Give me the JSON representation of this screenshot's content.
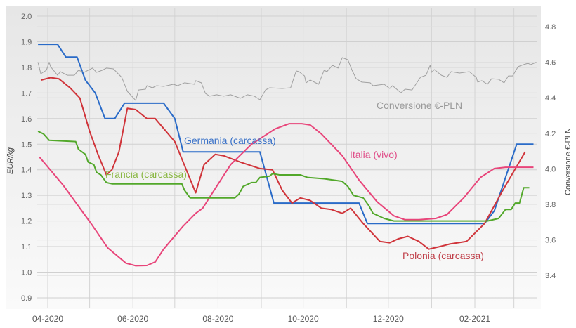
{
  "chart_data": {
    "type": "line",
    "title": "",
    "xlabel": "",
    "ylabel": "EUR/kg",
    "y2label": "Conversione €-PLN",
    "ylim": [
      0.85,
      2.03
    ],
    "y2lim": [
      3.23,
      4.85
    ],
    "yticks": [
      "0.9",
      "1.0",
      "1.1",
      "1.2",
      "1.3",
      "1.4",
      "1.5",
      "1.6",
      "1.7",
      "1.8",
      "1.9",
      "2.0"
    ],
    "y2ticks": [
      "3.4",
      "3.6",
      "3.8",
      "4.0",
      "4.2",
      "4.4",
      "4.6",
      "4.8"
    ],
    "xticks": [
      {
        "date": "2020-04-01",
        "label": "04-2020"
      },
      {
        "date": "2020-06-01",
        "label": "06-2020"
      },
      {
        "date": "2020-08-01",
        "label": "08-2020"
      },
      {
        "date": "2020-10-01",
        "label": "10-2020"
      },
      {
        "date": "2020-12-01",
        "label": "12-2020"
      },
      {
        "date": "2021-02-01",
        "label": "02-2021"
      }
    ],
    "grid": true,
    "series": [
      {
        "name": "Germania (carcassa)",
        "axis": "left",
        "color": "#2a6bc8",
        "points": [
          [
            "2020-03-25",
            1.89
          ],
          [
            "2020-04-08",
            1.89
          ],
          [
            "2020-04-14",
            1.84
          ],
          [
            "2020-04-22",
            1.84
          ],
          [
            "2020-04-28",
            1.75
          ],
          [
            "2020-05-05",
            1.7
          ],
          [
            "2020-05-12",
            1.6
          ],
          [
            "2020-05-19",
            1.6
          ],
          [
            "2020-05-26",
            1.66
          ],
          [
            "2020-06-23",
            1.66
          ],
          [
            "2020-07-01",
            1.6
          ],
          [
            "2020-07-07",
            1.47
          ],
          [
            "2020-08-31",
            1.47
          ],
          [
            "2020-09-10",
            1.27
          ],
          [
            "2020-11-10",
            1.27
          ],
          [
            "2020-11-16",
            1.19
          ],
          [
            "2021-02-08",
            1.19
          ],
          [
            "2021-02-15",
            1.24
          ],
          [
            "2021-03-03",
            1.5
          ],
          [
            "2021-03-15",
            1.5
          ]
        ]
      },
      {
        "name": "Polonia (carcassa)",
        "axis": "left",
        "color": "#d0343a",
        "points": [
          [
            "2020-03-27",
            1.75
          ],
          [
            "2020-04-03",
            1.76
          ],
          [
            "2020-04-09",
            1.755
          ],
          [
            "2020-04-17",
            1.72
          ],
          [
            "2020-04-24",
            1.68
          ],
          [
            "2020-05-01",
            1.55
          ],
          [
            "2020-05-07",
            1.46
          ],
          [
            "2020-05-13",
            1.38
          ],
          [
            "2020-05-17",
            1.4
          ],
          [
            "2020-05-22",
            1.47
          ],
          [
            "2020-05-28",
            1.64
          ],
          [
            "2020-06-03",
            1.635
          ],
          [
            "2020-06-11",
            1.6
          ],
          [
            "2020-06-17",
            1.6
          ],
          [
            "2020-07-01",
            1.51
          ],
          [
            "2020-07-04",
            1.47
          ],
          [
            "2020-07-16",
            1.31
          ],
          [
            "2020-07-22",
            1.42
          ],
          [
            "2020-07-30",
            1.46
          ],
          [
            "2020-08-05",
            1.455
          ],
          [
            "2020-08-17",
            1.43
          ],
          [
            "2020-08-31",
            1.405
          ],
          [
            "2020-09-09",
            1.4
          ],
          [
            "2020-09-16",
            1.32
          ],
          [
            "2020-09-23",
            1.27
          ],
          [
            "2020-09-29",
            1.29
          ],
          [
            "2020-10-06",
            1.28
          ],
          [
            "2020-10-14",
            1.25
          ],
          [
            "2020-10-21",
            1.245
          ],
          [
            "2020-10-29",
            1.23
          ],
          [
            "2020-11-04",
            1.25
          ],
          [
            "2020-11-13",
            1.19
          ],
          [
            "2020-11-25",
            1.12
          ],
          [
            "2020-12-02",
            1.115
          ],
          [
            "2020-12-08",
            1.13
          ],
          [
            "2020-12-15",
            1.14
          ],
          [
            "2020-12-23",
            1.12
          ],
          [
            "2020-12-30",
            1.09
          ],
          [
            "2021-01-07",
            1.1
          ],
          [
            "2021-01-14",
            1.11
          ],
          [
            "2021-01-26",
            1.12
          ],
          [
            "2021-02-08",
            1.19
          ],
          [
            "2021-02-21",
            1.32
          ],
          [
            "2021-03-09",
            1.47
          ]
        ]
      },
      {
        "name": "Italia (vivo)",
        "axis": "left",
        "color": "#e8457a",
        "points": [
          [
            "2020-03-26",
            1.45
          ],
          [
            "2020-04-12",
            1.34
          ],
          [
            "2020-05-02",
            1.19
          ],
          [
            "2020-05-14",
            1.095
          ],
          [
            "2020-05-27",
            1.035
          ],
          [
            "2020-06-03",
            1.025
          ],
          [
            "2020-06-11",
            1.026
          ],
          [
            "2020-06-17",
            1.04
          ],
          [
            "2020-06-23",
            1.09
          ],
          [
            "2020-07-07",
            1.18
          ],
          [
            "2020-07-16",
            1.23
          ],
          [
            "2020-07-21",
            1.25
          ],
          [
            "2020-07-28",
            1.31
          ],
          [
            "2020-08-10",
            1.42
          ],
          [
            "2020-08-25",
            1.5
          ],
          [
            "2020-09-11",
            1.56
          ],
          [
            "2020-09-21",
            1.58
          ],
          [
            "2020-09-30",
            1.58
          ],
          [
            "2020-10-06",
            1.575
          ],
          [
            "2020-10-14",
            1.54
          ],
          [
            "2020-10-29",
            1.455
          ],
          [
            "2020-11-10",
            1.36
          ],
          [
            "2020-11-23",
            1.275
          ],
          [
            "2020-12-05",
            1.22
          ],
          [
            "2020-12-13",
            1.205
          ],
          [
            "2020-12-23",
            1.205
          ],
          [
            "2021-01-04",
            1.21
          ],
          [
            "2021-01-12",
            1.225
          ],
          [
            "2021-01-24",
            1.29
          ],
          [
            "2021-02-05",
            1.37
          ],
          [
            "2021-02-15",
            1.405
          ],
          [
            "2021-02-23",
            1.41
          ],
          [
            "2021-03-05",
            1.41
          ],
          [
            "2021-03-15",
            1.41
          ]
        ]
      },
      {
        "name": "Francia (carcassa)",
        "axis": "left",
        "color": "#52a82a",
        "points": [
          [
            "2020-03-25",
            1.55
          ],
          [
            "2020-03-29",
            1.54
          ],
          [
            "2020-04-02",
            1.515
          ],
          [
            "2020-04-21",
            1.51
          ],
          [
            "2020-04-23",
            1.48
          ],
          [
            "2020-04-28",
            1.46
          ],
          [
            "2020-04-30",
            1.43
          ],
          [
            "2020-05-04",
            1.42
          ],
          [
            "2020-05-06",
            1.39
          ],
          [
            "2020-05-09",
            1.38
          ],
          [
            "2020-05-13",
            1.35
          ],
          [
            "2020-05-17",
            1.345
          ],
          [
            "2020-07-06",
            1.345
          ],
          [
            "2020-07-08",
            1.32
          ],
          [
            "2020-07-12",
            1.29
          ],
          [
            "2020-08-13",
            1.29
          ],
          [
            "2020-08-16",
            1.305
          ],
          [
            "2020-08-19",
            1.335
          ],
          [
            "2020-08-25",
            1.35
          ],
          [
            "2020-08-28",
            1.35
          ],
          [
            "2020-08-31",
            1.37
          ],
          [
            "2020-09-07",
            1.375
          ],
          [
            "2020-09-09",
            1.385
          ],
          [
            "2020-09-14",
            1.38
          ],
          [
            "2020-09-29",
            1.38
          ],
          [
            "2020-10-04",
            1.37
          ],
          [
            "2020-10-16",
            1.365
          ],
          [
            "2020-10-29",
            1.355
          ],
          [
            "2020-11-02",
            1.335
          ],
          [
            "2020-11-06",
            1.3
          ],
          [
            "2020-11-13",
            1.29
          ],
          [
            "2020-11-17",
            1.26
          ],
          [
            "2020-11-20",
            1.23
          ],
          [
            "2020-11-28",
            1.21
          ],
          [
            "2020-12-05",
            1.2
          ],
          [
            "2021-02-10",
            1.2
          ],
          [
            "2021-02-18",
            1.21
          ],
          [
            "2021-02-23",
            1.245
          ],
          [
            "2021-02-27",
            1.245
          ],
          [
            "2021-03-02",
            1.27
          ],
          [
            "2021-03-05",
            1.27
          ],
          [
            "2021-03-08",
            1.33
          ],
          [
            "2021-03-12",
            1.33
          ]
        ]
      },
      {
        "name": "Conversione €-PLN",
        "axis": "right",
        "color": "#a0a0a0",
        "points": [
          [
            "2020-03-25",
            4.6
          ],
          [
            "2020-03-27",
            4.535
          ],
          [
            "2020-03-31",
            4.555
          ],
          [
            "2020-04-02",
            4.6
          ],
          [
            "2020-04-03",
            4.575
          ],
          [
            "2020-04-08",
            4.527
          ],
          [
            "2020-04-10",
            4.547
          ],
          [
            "2020-04-15",
            4.527
          ],
          [
            "2020-04-20",
            4.527
          ],
          [
            "2020-04-23",
            4.555
          ],
          [
            "2020-04-27",
            4.543
          ],
          [
            "2020-05-03",
            4.567
          ],
          [
            "2020-05-06",
            4.543
          ],
          [
            "2020-05-10",
            4.555
          ],
          [
            "2020-05-13",
            4.567
          ],
          [
            "2020-05-18",
            4.563
          ],
          [
            "2020-05-23",
            4.523
          ],
          [
            "2020-05-24",
            4.515
          ],
          [
            "2020-05-28",
            4.436
          ],
          [
            "2020-06-03",
            4.385
          ],
          [
            "2020-06-05",
            4.444
          ],
          [
            "2020-06-10",
            4.448
          ],
          [
            "2020-06-11",
            4.468
          ],
          [
            "2020-06-15",
            4.456
          ],
          [
            "2020-06-18",
            4.468
          ],
          [
            "2020-06-23",
            4.464
          ],
          [
            "2020-06-30",
            4.476
          ],
          [
            "2020-07-03",
            4.468
          ],
          [
            "2020-07-08",
            4.484
          ],
          [
            "2020-07-15",
            4.476
          ],
          [
            "2020-07-16",
            4.496
          ],
          [
            "2020-07-20",
            4.484
          ],
          [
            "2020-07-23",
            4.424
          ],
          [
            "2020-07-26",
            4.409
          ],
          [
            "2020-07-31",
            4.417
          ],
          [
            "2020-08-05",
            4.409
          ],
          [
            "2020-08-10",
            4.417
          ],
          [
            "2020-08-17",
            4.397
          ],
          [
            "2020-08-22",
            4.417
          ],
          [
            "2020-08-27",
            4.409
          ],
          [
            "2020-08-31",
            4.389
          ],
          [
            "2020-09-04",
            4.444
          ],
          [
            "2020-09-07",
            4.456
          ],
          [
            "2020-09-16",
            4.452
          ],
          [
            "2020-09-22",
            4.456
          ],
          [
            "2020-09-26",
            4.551
          ],
          [
            "2020-09-28",
            4.547
          ],
          [
            "2020-10-02",
            4.523
          ],
          [
            "2020-10-03",
            4.484
          ],
          [
            "2020-10-06",
            4.5
          ],
          [
            "2020-10-12",
            4.476
          ],
          [
            "2020-10-16",
            4.555
          ],
          [
            "2020-10-18",
            4.547
          ],
          [
            "2020-10-22",
            4.583
          ],
          [
            "2020-10-26",
            4.567
          ],
          [
            "2020-10-29",
            4.626
          ],
          [
            "2020-11-02",
            4.614
          ],
          [
            "2020-11-05",
            4.555
          ],
          [
            "2020-11-08",
            4.507
          ],
          [
            "2020-11-12",
            4.488
          ],
          [
            "2020-11-18",
            4.484
          ],
          [
            "2020-11-20",
            4.468
          ],
          [
            "2020-11-28",
            4.476
          ],
          [
            "2020-12-02",
            4.452
          ],
          [
            "2020-12-04",
            4.468
          ],
          [
            "2020-12-10",
            4.428
          ],
          [
            "2020-12-13",
            4.448
          ],
          [
            "2020-12-18",
            4.444
          ],
          [
            "2020-12-24",
            4.515
          ],
          [
            "2020-12-28",
            4.527
          ],
          [
            "2020-12-31",
            4.583
          ],
          [
            "2021-01-01",
            4.543
          ],
          [
            "2021-01-03",
            4.559
          ],
          [
            "2021-01-08",
            4.527
          ],
          [
            "2021-01-12",
            4.515
          ],
          [
            "2021-01-15",
            4.547
          ],
          [
            "2021-01-21",
            4.539
          ],
          [
            "2021-01-28",
            4.547
          ],
          [
            "2021-02-02",
            4.515
          ],
          [
            "2021-02-03",
            4.488
          ],
          [
            "2021-02-06",
            4.496
          ],
          [
            "2021-02-10",
            4.476
          ],
          [
            "2021-02-13",
            4.507
          ],
          [
            "2021-02-18",
            4.504
          ],
          [
            "2021-02-22",
            4.484
          ],
          [
            "2021-02-25",
            4.523
          ],
          [
            "2021-02-28",
            4.523
          ],
          [
            "2021-03-04",
            4.575
          ],
          [
            "2021-03-08",
            4.587
          ],
          [
            "2021-03-11",
            4.594
          ],
          [
            "2021-03-13",
            4.587
          ],
          [
            "2021-03-17",
            4.6
          ]
        ]
      }
    ],
    "annotations": [
      "Germania (carcassa)",
      "Francia (carcassa)",
      "Italia (vivo)",
      "Polonia (carcassa)",
      "Conversione €-PLN"
    ]
  }
}
